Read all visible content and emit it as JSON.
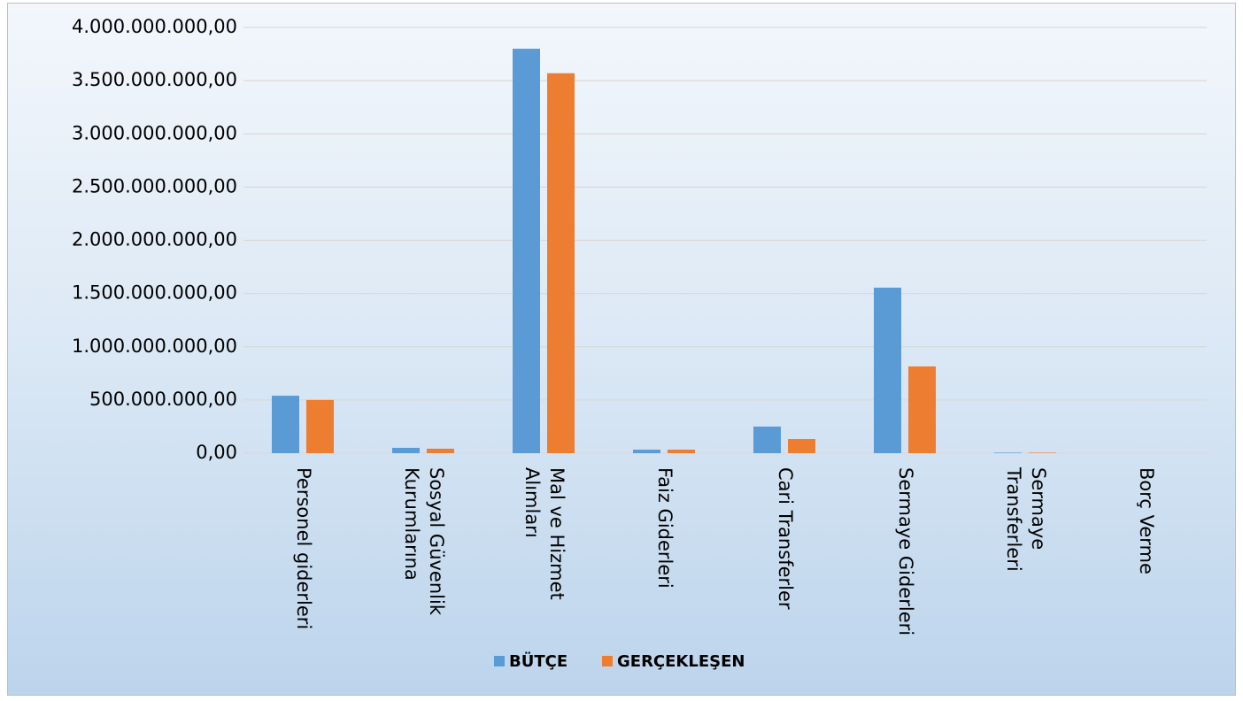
{
  "chart_data": {
    "type": "bar",
    "categories": [
      "Personel giderleri",
      "Sosyal Güvenlik\nKurumlarına",
      "Mal ve Hizmet\nAlımları",
      "Faiz Giderleri",
      "Cari Transferler",
      "Sermaye Giderleri",
      "Sermaye\nTransferleri",
      "Borç Verme"
    ],
    "series": [
      {
        "name": "BÜTÇE",
        "color": "#5b9bd5",
        "values": [
          540000000,
          50000000,
          3800000000,
          33000000,
          250000000,
          1555000000,
          5000000,
          0
        ]
      },
      {
        "name": "GERÇEKLEŞEN",
        "color": "#ed7d31",
        "values": [
          500000000,
          42000000,
          3570000000,
          33000000,
          133000000,
          815000000,
          5000000,
          0
        ]
      }
    ],
    "ylim": [
      0,
      4000000000
    ],
    "yticks": [
      {
        "value": 0,
        "label": "0,00"
      },
      {
        "value": 500000000,
        "label": "500.000.000,00"
      },
      {
        "value": 1000000000,
        "label": "1.000.000.000,00"
      },
      {
        "value": 1500000000,
        "label": "1.500.000.000,00"
      },
      {
        "value": 2000000000,
        "label": "2.000.000.000,00"
      },
      {
        "value": 2500000000,
        "label": "2.500.000.000,00"
      },
      {
        "value": 3000000000,
        "label": "3.000.000.000,00"
      },
      {
        "value": 3500000000,
        "label": "3.500.000.000,00"
      },
      {
        "value": 4000000000,
        "label": "4.000.000.000,00"
      }
    ],
    "grid": true,
    "legend": "bottom"
  }
}
